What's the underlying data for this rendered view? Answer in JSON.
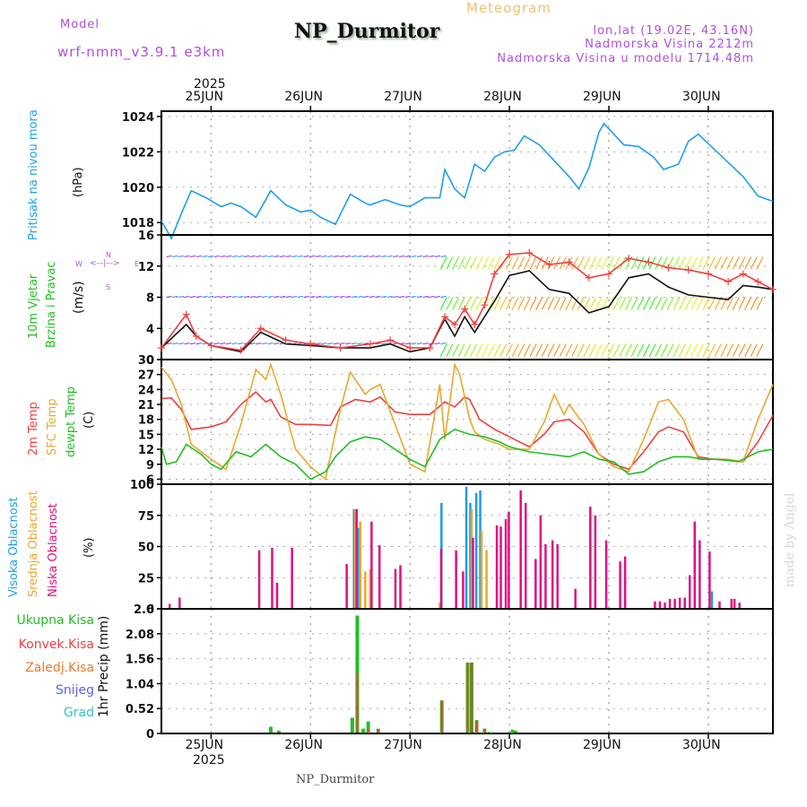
{
  "header": {
    "model_label": "Model",
    "model_name": "wrf-nmm_v3.9.1 e3km",
    "title": "NP_Durmitor",
    "subtitle": "Meteogram",
    "location": "lon,lat (19.02E, 43.16N)",
    "elevation": "Nadmorska Visina 2212m",
    "model_elevation": "Nadmorska Visina u modelu 1714.48m",
    "footer_station": "NP_Durmitor",
    "watermark": "made by Angel"
  },
  "x_axis": {
    "year": "2025",
    "ticks": [
      "25JUN",
      "26JUN",
      "27JUN",
      "28JUN",
      "29JUN",
      "30JUN"
    ],
    "range_days": [
      24.5,
      30.65
    ]
  },
  "panel_labels": {
    "pressure": {
      "name": "Pritisak na nivou mora",
      "unit": "(hPa)"
    },
    "wind": {
      "name1": "10m Vjetar",
      "name2": "Brzina i Pravac",
      "unit": "(m/s)",
      "compass": {
        "n": "N",
        "s": "S",
        "w": "W",
        "e": "E"
      }
    },
    "temp": {
      "t2m": "2m Temp",
      "sfc": "SFC Temp",
      "dewpt": "dewpt Temp",
      "unit": "(C)"
    },
    "cloud": {
      "high": "Visoka Oblacnost",
      "mid": "Srednja Oblacnost",
      "low": "Niska Oblacnost",
      "unit": "(%)"
    },
    "precip": {
      "total": "Ukupna Kisa",
      "conv": "Konvek.Kisa",
      "frz": "Zaledj.Kisa",
      "snow": "Snijeg",
      "hail": "Grad",
      "unit": "1hr Precip (mm)"
    }
  },
  "colors": {
    "pressure": "#1ea0e8",
    "t2m": "#f04040",
    "sfc": "#e8a830",
    "dewpt": "#20c020",
    "cloud_high": "#1e9ae8",
    "cloud_mid": "#e8a830",
    "cloud_low": "#e0107f",
    "precip_total": "#20c020",
    "precip_conv": "#f04040",
    "snow": "#6060f0",
    "hail": "#30c8c8",
    "label_purple": "#b04fd8"
  },
  "chart_data": [
    {
      "type": "line",
      "title": "Pritisak na nivou mora",
      "ylabel": "(hPa)",
      "ylim": [
        1017.3,
        1024.3
      ],
      "yticks": [
        1018,
        1020,
        1022,
        1024
      ],
      "grid": true,
      "series": [
        {
          "name": "MSLP",
          "x": [
            24.5,
            24.6,
            24.7,
            24.8,
            24.95,
            25.1,
            25.2,
            25.3,
            25.45,
            25.6,
            25.75,
            25.9,
            26.0,
            26.1,
            26.25,
            26.4,
            26.55,
            26.6,
            26.75,
            26.9,
            27.0,
            27.15,
            27.3,
            27.35,
            27.45,
            27.55,
            27.65,
            27.75,
            27.85,
            27.95,
            28.05,
            28.15,
            28.3,
            28.45,
            28.6,
            28.7,
            28.8,
            28.9,
            28.95,
            29.05,
            29.15,
            29.3,
            29.45,
            29.55,
            29.7,
            29.8,
            29.9,
            30.05,
            30.2,
            30.35,
            30.5,
            30.6,
            30.65
          ],
          "values": [
            1018.1,
            1017.1,
            1018.5,
            1019.8,
            1019.4,
            1018.9,
            1019.1,
            1018.9,
            1018.3,
            1019.8,
            1019.0,
            1018.6,
            1018.7,
            1018.3,
            1017.9,
            1019.6,
            1019.1,
            1019.0,
            1019.3,
            1019.0,
            1018.9,
            1019.4,
            1019.4,
            1021.0,
            1019.9,
            1019.4,
            1021.3,
            1020.9,
            1021.7,
            1022.0,
            1022.1,
            1022.9,
            1022.4,
            1021.5,
            1020.6,
            1019.9,
            1021.1,
            1023.1,
            1023.6,
            1023.0,
            1022.4,
            1022.3,
            1021.7,
            1021.0,
            1021.3,
            1022.6,
            1023.0,
            1022.2,
            1021.4,
            1020.6,
            1019.5,
            1019.3,
            1019.2
          ]
        }
      ]
    },
    {
      "type": "line",
      "title": "10m Vjetar Brzina i Pravac",
      "ylabel": "(m/s)",
      "ylim": [
        0,
        16
      ],
      "yticks": [
        0,
        4,
        8,
        12,
        16
      ],
      "grid": true,
      "series": [
        {
          "name": "wind speed",
          "color": "#111111",
          "x": [
            24.5,
            24.75,
            24.85,
            25.0,
            25.3,
            25.5,
            25.75,
            26.0,
            26.3,
            26.6,
            26.8,
            27.0,
            27.2,
            27.35,
            27.45,
            27.55,
            27.65,
            27.75,
            27.85,
            28.0,
            28.2,
            28.4,
            28.6,
            28.8,
            29.0,
            29.2,
            29.4,
            29.6,
            29.8,
            30.0,
            30.2,
            30.35,
            30.5,
            30.65
          ],
          "values": [
            1.5,
            4.5,
            3.0,
            1.8,
            1.0,
            3.5,
            2.0,
            1.8,
            1.5,
            1.5,
            2.0,
            1.0,
            1.5,
            5.2,
            3.0,
            5.5,
            3.5,
            5.5,
            7.5,
            10.8,
            11.4,
            9.0,
            8.5,
            6.0,
            6.8,
            10.5,
            11.0,
            9.3,
            8.3,
            8.0,
            7.7,
            9.5,
            9.3,
            9.0
          ]
        },
        {
          "name": "wind gust",
          "color": "#f04040",
          "x": [
            24.5,
            24.75,
            24.85,
            25.0,
            25.3,
            25.5,
            25.75,
            26.0,
            26.3,
            26.6,
            26.8,
            27.0,
            27.2,
            27.35,
            27.45,
            27.55,
            27.65,
            27.75,
            27.85,
            28.0,
            28.2,
            28.4,
            28.6,
            28.8,
            29.0,
            29.2,
            29.4,
            29.6,
            29.8,
            30.0,
            30.2,
            30.35,
            30.5,
            30.65
          ],
          "values": [
            1.5,
            5.8,
            3.0,
            1.8,
            1.2,
            4.0,
            2.5,
            2.0,
            1.5,
            2.0,
            2.5,
            1.5,
            1.5,
            5.5,
            4.5,
            6.5,
            4.5,
            7.0,
            11.0,
            13.5,
            13.7,
            12.2,
            12.5,
            10.5,
            11.0,
            13.0,
            12.5,
            11.8,
            11.5,
            11.0,
            10.0,
            11.0,
            10.0,
            9.0
          ]
        }
      ]
    },
    {
      "type": "line",
      "title": "Temperatures",
      "ylabel": "(C)",
      "ylim": [
        5,
        30
      ],
      "yticks": [
        6,
        9,
        12,
        15,
        18,
        21,
        24,
        27,
        30
      ],
      "grid": true,
      "series": [
        {
          "name": "2m Temp",
          "x": [
            24.5,
            24.6,
            24.7,
            24.8,
            25.0,
            25.15,
            25.3,
            25.45,
            25.55,
            25.6,
            25.7,
            25.85,
            26.0,
            26.2,
            26.3,
            26.45,
            26.6,
            26.7,
            26.85,
            27.0,
            27.1,
            27.2,
            27.35,
            27.45,
            27.55,
            27.6,
            27.7,
            27.85,
            28.0,
            28.2,
            28.35,
            28.45,
            28.6,
            28.75,
            28.9,
            29.05,
            29.2,
            29.35,
            29.5,
            29.6,
            29.75,
            29.9,
            30.05,
            30.2,
            30.35,
            30.5,
            30.65
          ],
          "values": [
            22.2,
            22.3,
            20.0,
            16.0,
            16.5,
            17.5,
            21.0,
            23.5,
            21.5,
            22.0,
            18.5,
            17.0,
            17.0,
            16.8,
            20.5,
            22.0,
            21.5,
            22.5,
            19.5,
            19.0,
            19.0,
            19.0,
            21.5,
            20.5,
            22.5,
            22.0,
            18.0,
            16.0,
            14.5,
            12.5,
            15.0,
            17.5,
            18.0,
            15.5,
            11.0,
            9.0,
            8.0,
            11.5,
            15.5,
            16.5,
            15.5,
            10.5,
            10.0,
            9.8,
            9.5,
            13.5,
            18.8
          ]
        },
        {
          "name": "SFC Temp",
          "x": [
            24.5,
            24.6,
            24.7,
            24.8,
            25.0,
            25.15,
            25.3,
            25.45,
            25.55,
            25.6,
            25.65,
            25.7,
            25.85,
            26.0,
            26.15,
            26.3,
            26.4,
            26.5,
            26.55,
            26.6,
            26.7,
            26.85,
            27.0,
            27.15,
            27.3,
            27.35,
            27.45,
            27.5,
            27.6,
            27.65,
            27.75,
            27.9,
            28.0,
            28.2,
            28.35,
            28.45,
            28.55,
            28.6,
            28.75,
            28.9,
            29.05,
            29.2,
            29.35,
            29.5,
            29.6,
            29.75,
            29.9,
            30.05,
            30.2,
            30.35,
            30.5,
            30.65
          ],
          "values": [
            28.5,
            26.0,
            21.0,
            13.0,
            10.0,
            8.0,
            17.0,
            28.0,
            26.0,
            29.0,
            26.0,
            23.0,
            12.0,
            8.5,
            6.0,
            20.0,
            27.5,
            24.5,
            23.0,
            24.0,
            25.0,
            17.0,
            9.0,
            7.5,
            25.0,
            14.0,
            29.0,
            27.0,
            18.0,
            15.5,
            14.0,
            13.0,
            12.0,
            12.0,
            17.5,
            23.0,
            19.0,
            21.0,
            17.0,
            11.0,
            8.5,
            7.5,
            14.0,
            21.5,
            22.0,
            18.0,
            10.0,
            10.0,
            10.0,
            9.5,
            18.0,
            25.0
          ]
        },
        {
          "name": "dewpt Temp",
          "x": [
            24.5,
            24.55,
            24.65,
            24.75,
            24.9,
            25.0,
            25.1,
            25.25,
            25.4,
            25.55,
            25.7,
            25.85,
            26.0,
            26.15,
            26.25,
            26.4,
            26.55,
            26.7,
            26.85,
            27.0,
            27.15,
            27.3,
            27.45,
            27.6,
            27.75,
            27.9,
            28.0,
            28.2,
            28.4,
            28.6,
            28.75,
            28.9,
            29.05,
            29.2,
            29.35,
            29.5,
            29.65,
            29.8,
            29.95,
            30.1,
            30.3,
            30.5,
            30.65
          ],
          "values": [
            12.5,
            9.0,
            9.5,
            13.0,
            11.0,
            9.0,
            8.0,
            11.5,
            10.5,
            13.0,
            10.5,
            9.0,
            6.0,
            7.5,
            10.5,
            13.5,
            14.5,
            14.0,
            12.0,
            10.0,
            8.5,
            14.0,
            16.0,
            15.0,
            14.5,
            13.5,
            12.5,
            11.5,
            11.0,
            10.5,
            11.5,
            10.0,
            9.5,
            7.0,
            7.5,
            9.5,
            10.5,
            10.5,
            10.0,
            10.0,
            9.5,
            11.5,
            12.0
          ]
        }
      ]
    },
    {
      "type": "bar",
      "title": "Oblacnost",
      "ylabel": "(%)",
      "ylim": [
        0,
        100
      ],
      "yticks": [
        0,
        25,
        50,
        75,
        100
      ],
      "grid": true,
      "series": [
        {
          "name": "Visoka Oblacnost",
          "x": [
            26.45,
            26.5,
            27.33,
            27.58,
            27.62,
            27.68,
            27.72,
            30.05
          ],
          "values": [
            80,
            65,
            85,
            98,
            85,
            93,
            95,
            14
          ]
        },
        {
          "name": "Srednja Oblacnost",
          "x": [
            26.45,
            26.5,
            26.55,
            26.6,
            27.3,
            27.62,
            27.72,
            27.77
          ],
          "values": [
            80,
            70,
            30,
            32,
            5,
            80,
            63,
            47
          ]
        },
        {
          "name": "Niska Oblacnost",
          "x": [
            24.57,
            24.67,
            25.47,
            25.6,
            25.65,
            25.8,
            26.35,
            26.45,
            26.6,
            26.68,
            26.84,
            26.89,
            27.3,
            27.45,
            27.52,
            27.62,
            27.86,
            27.9,
            27.95,
            27.98,
            28.1,
            28.15,
            28.25,
            28.3,
            28.35,
            28.42,
            28.47,
            28.65,
            28.8,
            28.85,
            28.96,
            29.1,
            29.15,
            29.45,
            29.5,
            29.55,
            29.6,
            29.65,
            29.7,
            29.75,
            29.8,
            29.85,
            29.9,
            30.0,
            30.1,
            30.22,
            30.25,
            30.3
          ],
          "values": [
            4,
            9,
            47,
            49,
            21,
            49,
            36,
            80,
            70,
            51,
            32,
            35,
            48,
            47,
            30,
            57,
            67,
            66,
            72,
            78,
            95,
            85,
            40,
            75,
            52,
            55,
            52,
            16,
            82,
            75,
            55,
            38,
            42,
            6,
            6,
            5,
            8,
            8,
            9,
            9,
            27,
            70,
            55,
            46,
            6,
            8,
            8,
            5
          ]
        }
      ]
    },
    {
      "type": "bar",
      "title": "1hr Precip",
      "ylabel": "1hr Precip (mm)",
      "ylim": [
        0,
        2.6
      ],
      "yticks": [
        0,
        0.52,
        1.04,
        1.56,
        2.08,
        2.6
      ],
      "grid": true,
      "series": [
        {
          "name": "Ukupna Kisa",
          "x": [
            25.6,
            25.68,
            26.42,
            26.47,
            26.53,
            26.58,
            26.68,
            27.32,
            27.58,
            27.62,
            27.67,
            27.75,
            27.8,
            28.03,
            28.06
          ],
          "values": [
            0.14,
            0.06,
            0.33,
            2.46,
            0.1,
            0.25,
            0.1,
            0.69,
            1.48,
            1.48,
            0.28,
            0.1,
            0.03,
            0.08,
            0.06
          ]
        },
        {
          "name": "Konvek.Kisa",
          "x": [
            26.47,
            26.58,
            26.68,
            27.32,
            27.58,
            27.62,
            27.67,
            27.75
          ],
          "values": [
            1.27,
            0.1,
            0.08,
            0.69,
            1.48,
            1.48,
            0.25,
            0.1
          ]
        },
        {
          "name": "Zaledj.Kisa",
          "x": [],
          "values": []
        },
        {
          "name": "Snijeg",
          "x": [],
          "values": []
        },
        {
          "name": "Grad",
          "x": [],
          "values": []
        }
      ]
    }
  ]
}
